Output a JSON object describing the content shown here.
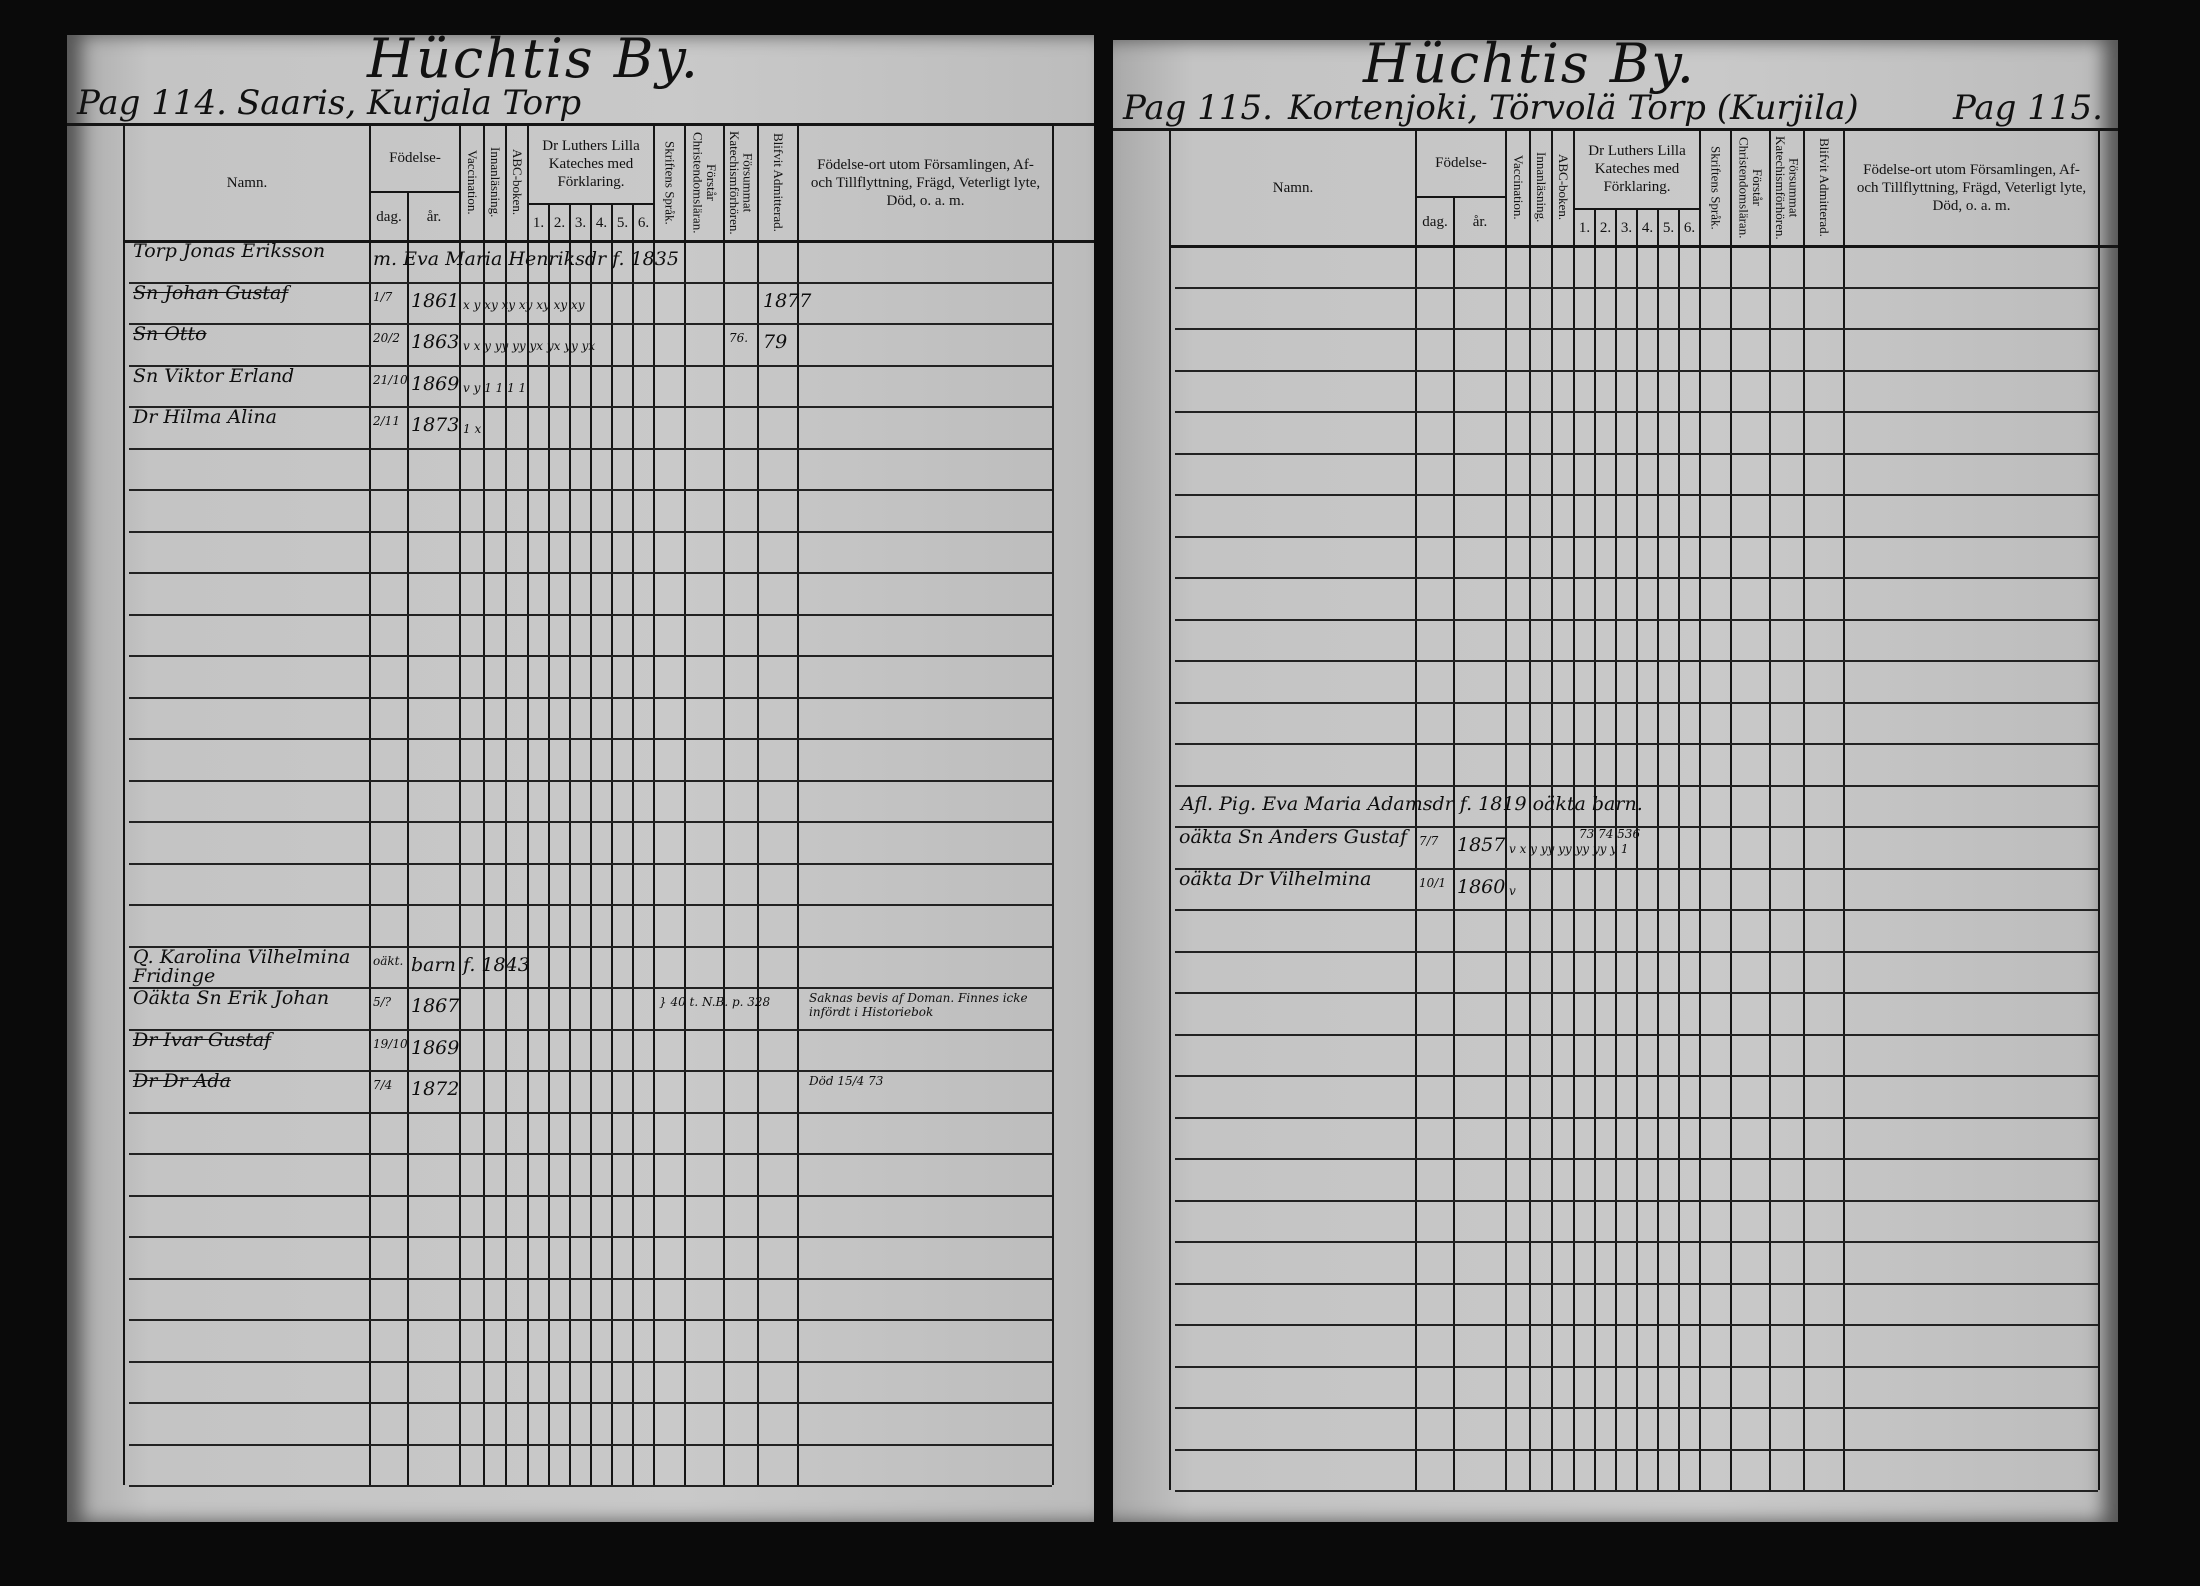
{
  "header_columns": {
    "name": "Namn.",
    "birth": "Födelse-",
    "birth_day": "dag.",
    "birth_year": "år.",
    "vaccination": "Vaccination.",
    "reading": "Innanläsning.",
    "abc": "ABC-boken.",
    "catechism": "Dr Luthers Lilla Kateches med Förklaring.",
    "catechism_parts": [
      "1.",
      "2.",
      "3.",
      "4.",
      "5.",
      "6."
    ],
    "scripture": "Skriftens Språk.",
    "christian": "Förstår Christendomsläran.",
    "missed": "Försummat Katechismförhören.",
    "admitted": "Blifvit Admitterad.",
    "remarks": "Födelse-ort utom Församlingen, Af- och Tillflyttning, Frägd, Veterligt lyte, Död, o. a. m."
  },
  "pages": [
    {
      "title": "Hüchtis By.",
      "page_label": "Pag 114.",
      "subtitle": "Saaris, Kurjala Torp",
      "entries": [
        {
          "row": 0,
          "name": "Torp Jonas Eriksson",
          "span": "m. Eva Maria Henriksdr f. 1835"
        },
        {
          "row": 1,
          "name": "Sn Johan Gustaf",
          "struck": true,
          "day": "1/7",
          "year": "1861",
          "marks": "x  y  xy xy xy xy xy xy",
          "admitted": "1877"
        },
        {
          "row": 2,
          "name": "Sn Otto",
          "struck": true,
          "day": "20/2",
          "year": "1863",
          "marks": "v  x  y  yy yy yx yx yy yx",
          "missed": "76.",
          "admitted": "79"
        },
        {
          "row": 3,
          "name": "Sn Viktor Erland",
          "day": "21/10",
          "year": "1869",
          "marks": "v  y  1  1  1  1"
        },
        {
          "row": 4,
          "name": "Dr Hilma Alina",
          "day": "2/11",
          "year": "1873",
          "marks": "1  x"
        },
        {
          "row": 17,
          "name": "Q. Karolina Vilhelmina Fridinge",
          "day": "oäkt.",
          "year": "barn",
          "span": "f. 1843"
        },
        {
          "row": 18,
          "name": "Oäkta Sn Erik Johan",
          "struck": false,
          "day": "5/?",
          "year": "1867",
          "note": "} 40 t. N.B. p. 328",
          "remark": "Saknas bevis af Doman. Finnes icke infördt i Historiebok"
        },
        {
          "row": 19,
          "name": "Dr Ivar Gustaf",
          "struck": true,
          "day": "19/10",
          "year": "1869"
        },
        {
          "row": 20,
          "name": "Dr Dr Ada",
          "struck": true,
          "day": "7/4",
          "year": "1872",
          "remark": "Död 15/4 73"
        }
      ]
    },
    {
      "title": "Hüchtis By.",
      "page_label": "Pag 115.",
      "subtitle": "Kortenjoki, Törvolä Torp (Kurjila)",
      "page_label_right": "Pag 115.",
      "entries": [
        {
          "row": 13,
          "name": "Afl. Pig. Eva Maria Adamsdr f. 1819 oäkta barn."
        },
        {
          "row": 14,
          "name": "oäkta Sn Anders Gustaf",
          "struck": false,
          "day": "7/7",
          "year": "1857",
          "marks": "v  x  y  yy yy yy yy y  1",
          "marks_sup": "73 74 536"
        },
        {
          "row": 15,
          "name": "oäkta Dr Vilhelmina",
          "day": "10/1",
          "year": "1860",
          "marks": "v"
        }
      ]
    }
  ],
  "colors": {
    "background": "#0a0a0a",
    "paper": "#c4c4c4",
    "ink": "#111111"
  }
}
